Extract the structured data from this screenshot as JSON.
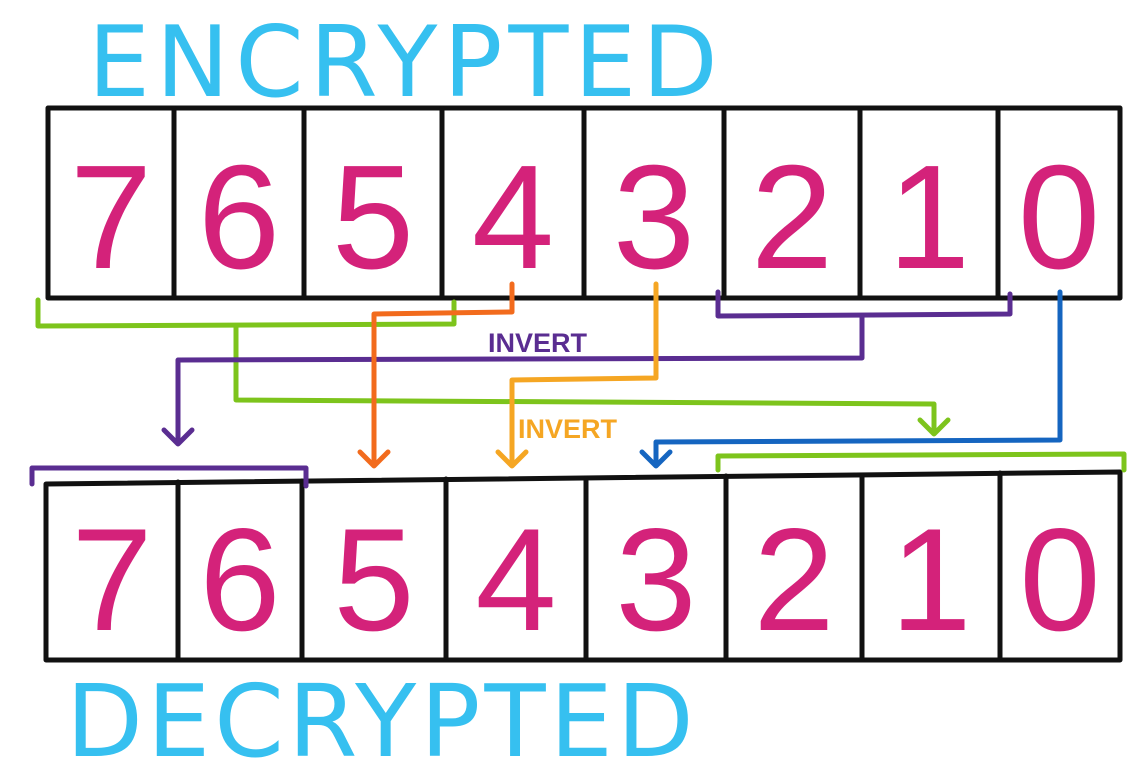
{
  "titles": {
    "encrypted": "ENCRYPTED",
    "decrypted": "DECRYPTED"
  },
  "encrypted_digits": [
    "7",
    "6",
    "5",
    "4",
    "3",
    "2",
    "1",
    "0"
  ],
  "decrypted_digits": [
    "7",
    "6",
    "5",
    "4",
    "3",
    "2",
    "1",
    "0"
  ],
  "labels": {
    "invert_purple": "INVERT",
    "invert_orange": "INVERT"
  },
  "colors": {
    "title": "#36c0f0",
    "digit": "#d4227a",
    "box_border": "#111111",
    "green": "#7dc41c",
    "purple": "#5a2d91",
    "orange": "#f26b1d",
    "amber": "#f5a623",
    "blue": "#1565c0"
  },
  "mapping": [
    {
      "from_bits": [
        "7",
        "6",
        "5"
      ],
      "to_bits": [
        "2",
        "1",
        "0"
      ],
      "color": "green"
    },
    {
      "from_bits": [
        "4"
      ],
      "to_bits": [
        "5"
      ],
      "color": "orange"
    },
    {
      "from_bits": [
        "3"
      ],
      "to_bits": [
        "4"
      ],
      "color": "amber",
      "inverted": true
    },
    {
      "from_bits": [
        "2",
        "1"
      ],
      "to_bits": [
        "7",
        "6"
      ],
      "color": "purple",
      "inverted": true
    },
    {
      "from_bits": [
        "0"
      ],
      "to_bits": [
        "3"
      ],
      "color": "blue"
    }
  ]
}
